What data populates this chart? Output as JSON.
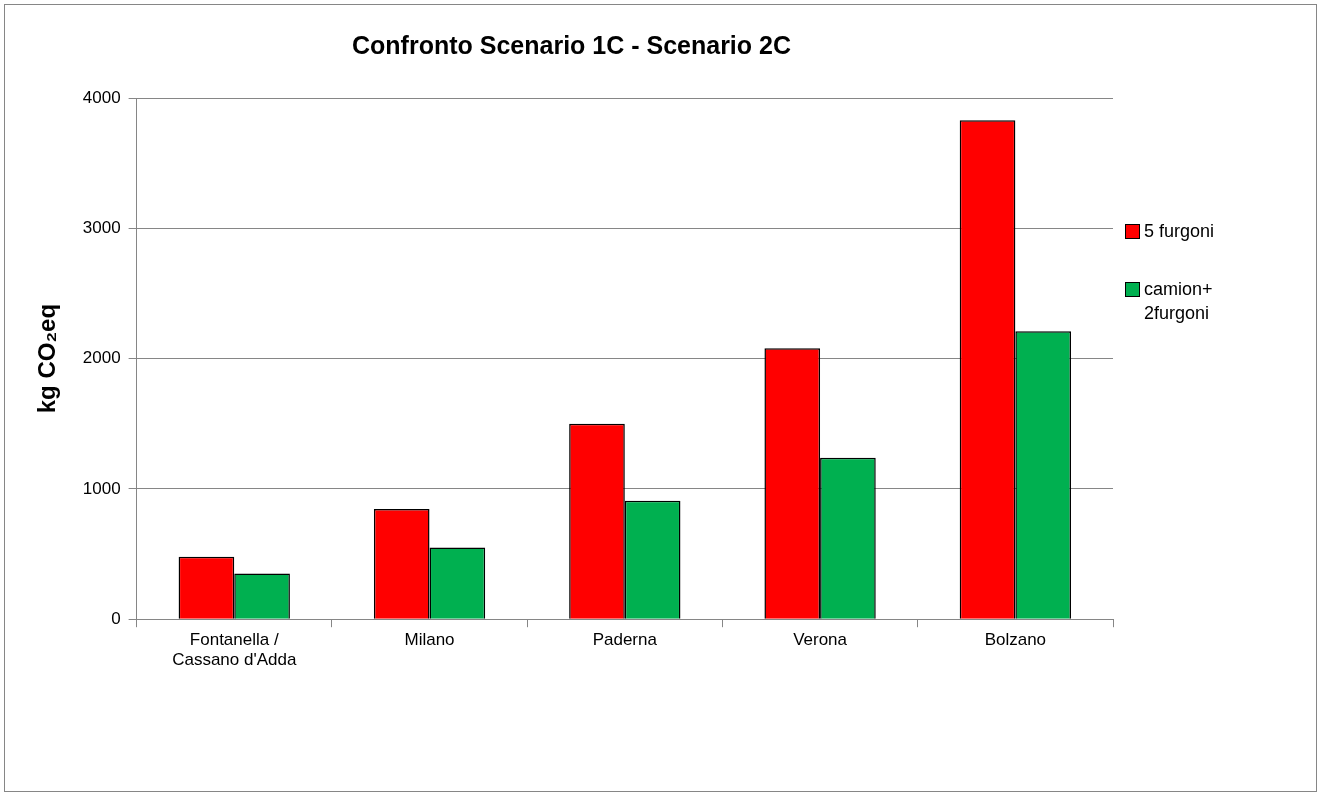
{
  "chart_data": {
    "type": "bar",
    "title": "Confronto Scenario 1C - Scenario 2C",
    "ylabel": "kg CO₂eq",
    "categories": [
      "Fontanella / Cassano d'Adda",
      "Milano",
      "Paderna",
      "Verona",
      "Bolzano"
    ],
    "series": [
      {
        "name": "5 furgoni",
        "color": "#ff0000",
        "values": [
          480,
          845,
          1500,
          2080,
          3830
        ]
      },
      {
        "name": "camion+ 2furgoni",
        "color": "#00b050",
        "values": [
          350,
          550,
          910,
          1240,
          2210
        ]
      }
    ],
    "ylim": [
      0,
      4000
    ],
    "yticks": [
      0,
      1000,
      2000,
      3000,
      4000
    ],
    "grid": "y",
    "legend": "right"
  }
}
